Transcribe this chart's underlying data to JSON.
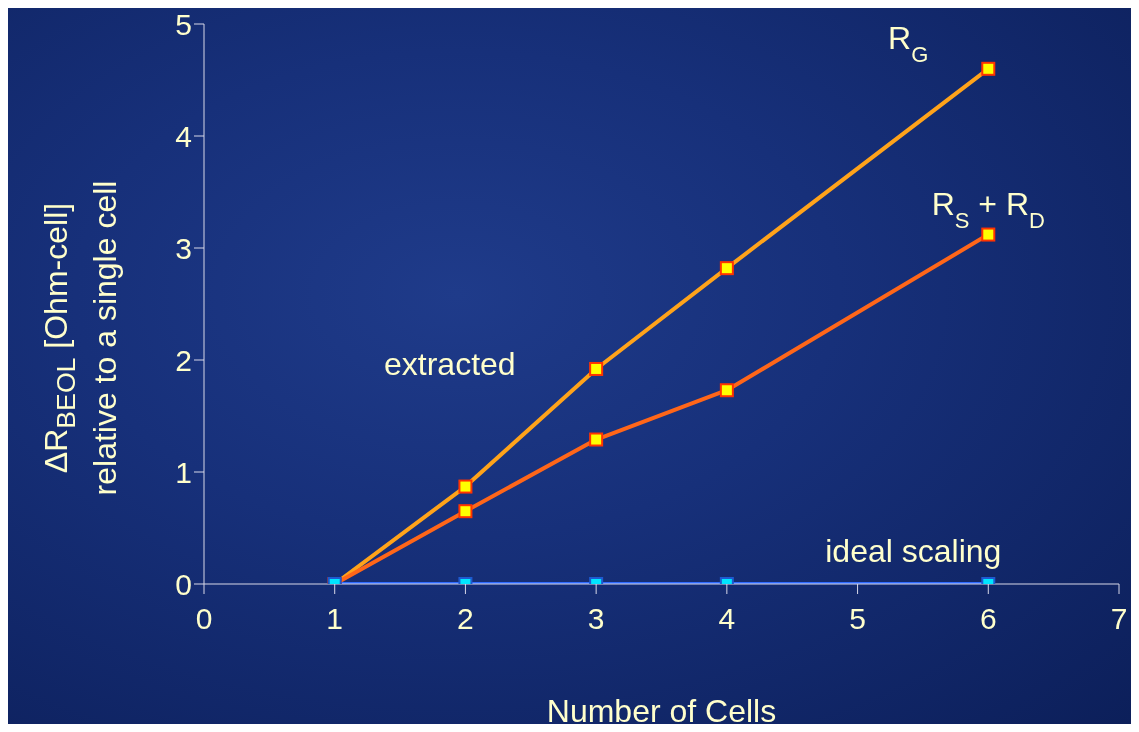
{
  "chart_data": {
    "type": "line",
    "xlabel": "Number  of Cells",
    "ylabel": "ΔR$_{BEOL}$ [Ohm-cell]\nrelative to a single cell",
    "x": [
      1,
      2,
      3,
      4,
      6
    ],
    "series": [
      {
        "name": "R$_{G}$",
        "color": "#ffa31a",
        "values": [
          0,
          0.87,
          1.92,
          2.82,
          4.6
        ]
      },
      {
        "name": "R$_{S}$ + R$_{D}$",
        "color": "#ff6619",
        "values": [
          0,
          0.65,
          1.29,
          1.73,
          3.12
        ]
      },
      {
        "name": "ideal scaling",
        "color": "#2f6bff",
        "values": [
          0,
          0,
          0,
          0,
          0
        ]
      }
    ],
    "annotations": [
      "extracted"
    ],
    "xlim": [
      0,
      7
    ],
    "xticks": [
      0,
      1,
      2,
      3,
      4,
      5,
      6,
      7
    ],
    "ylim": [
      0,
      5
    ],
    "yticks": [
      0,
      1,
      2,
      3,
      4,
      5
    ],
    "grid": false,
    "legend": false,
    "marker": "square",
    "line_style": "solid"
  }
}
